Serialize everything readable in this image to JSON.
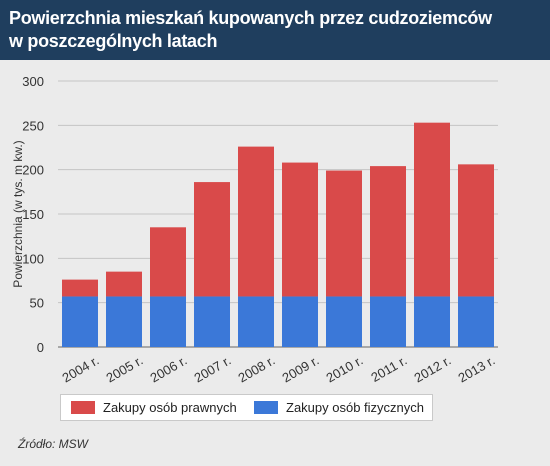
{
  "title": {
    "line1": "Powierzchnia mieszkań kupowanych przez cudzoziemców",
    "line2": "w poszczególnych latach"
  },
  "chart_data": {
    "type": "bar",
    "stacked": true,
    "categories": [
      "2004 r.",
      "2005 r.",
      "2006 r.",
      "2007 r.",
      "2008 r.",
      "2009 r.",
      "2010 r.",
      "2011 r.",
      "2012 r.",
      "2013 r."
    ],
    "series": [
      {
        "name": "Zakupy osób fizycznych",
        "color": "#3b78d8",
        "values": [
          57,
          57,
          57,
          57,
          57,
          57,
          57,
          57,
          57,
          57
        ]
      },
      {
        "name": "Zakupy osób prawnych",
        "color": "#d94a4a",
        "values": [
          19,
          28,
          78,
          129,
          169,
          151,
          142,
          147,
          196,
          149
        ]
      }
    ],
    "ylabel": "Powierzchnia (w tys. m kw.)",
    "ylim": [
      0,
      300
    ],
    "yticks": [
      0,
      50,
      100,
      150,
      200,
      250,
      300
    ],
    "grid": true,
    "legend_position": "bottom"
  },
  "legend": {
    "items": [
      {
        "label": "Zakupy osób prawnych",
        "color": "#d94a4a"
      },
      {
        "label": "Zakupy osób fizycznych",
        "color": "#3b78d8"
      }
    ]
  },
  "source": "Źródło: MSW"
}
